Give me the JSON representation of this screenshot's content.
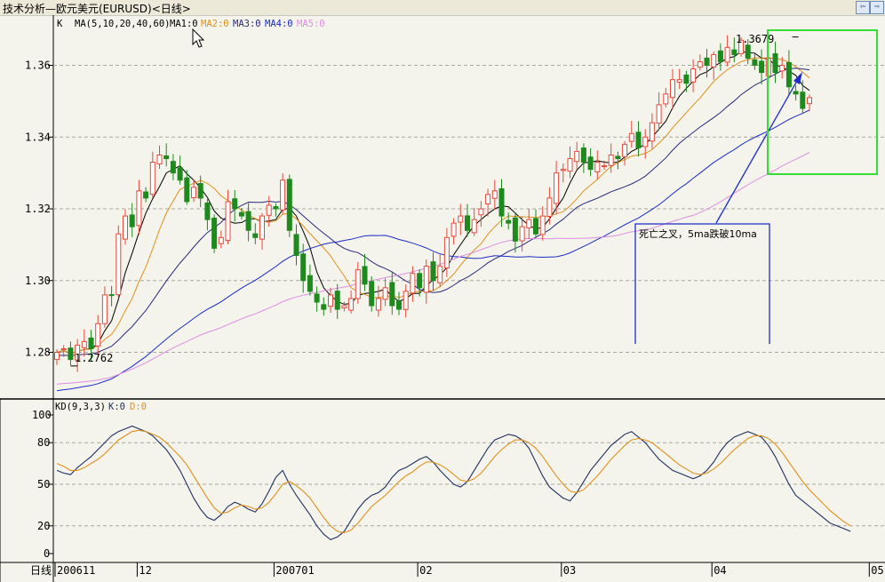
{
  "window": {
    "title": "技术分析—欧元美元(EURUSD)<日线>",
    "prev_icon": "arrow-left-icon",
    "next_icon": "arrow-right-icon"
  },
  "colors": {
    "up": "#e8483a",
    "down": "#1e8a1e",
    "ma1": "#000000",
    "ma2": "#e0901c",
    "ma3": "#2a2a7a",
    "ma4": "#1c2cc4",
    "ma5": "#dc8ee0",
    "k": "#1f2f5f",
    "d": "#e0901c",
    "highlight": "#33dd33",
    "arrow": "#1c2cc4"
  },
  "legend": {
    "k_label": "K",
    "ma_params": "MA(5,10,20,40,60)",
    "ma1": "MA1:0",
    "ma2": "MA2:0",
    "ma3": "MA3:0",
    "ma4": "MA4:0",
    "ma5": "MA5:0"
  },
  "annotations": {
    "high_label": "1.3679",
    "low_label": "1.2762",
    "note": "死亡之叉，5ma跌破10ma"
  },
  "kd_legend": {
    "params": "KD(9,3,3)",
    "k": "K:0",
    "d": "D:0"
  },
  "chart_data": [
    {
      "type": "candlestick",
      "title": "EURUSD 日线",
      "ylim": [
        1.267,
        1.374
      ],
      "y_ticks": [
        "1.28",
        "1.30",
        "1.32",
        "1.34",
        "1.36"
      ],
      "y_tick_values": [
        1.28,
        1.3,
        1.32,
        1.34,
        1.36
      ],
      "x_labels": [
        "200611",
        "12",
        "200701",
        "02",
        "03",
        "04",
        "05"
      ],
      "x_label_bars": [
        0,
        12,
        32,
        53,
        74,
        96,
        119
      ],
      "close_path": [
        1.28,
        1.281,
        1.278,
        1.282,
        1.283,
        1.281,
        1.288,
        1.296,
        1.296,
        1.313,
        1.318,
        1.315,
        1.325,
        1.323,
        1.333,
        1.335,
        1.334,
        1.33,
        1.328,
        1.322,
        1.326,
        1.323,
        1.317,
        1.309,
        1.312,
        1.322,
        1.32,
        1.318,
        1.314,
        1.312,
        1.318,
        1.321,
        1.32,
        1.328,
        1.314,
        1.307,
        1.3,
        1.297,
        1.294,
        1.292,
        1.296,
        1.292,
        1.293,
        1.295,
        1.303,
        1.299,
        1.293,
        1.295,
        1.298,
        1.293,
        1.292,
        1.297,
        1.302,
        1.298,
        1.304,
        1.3,
        1.304,
        1.312,
        1.316,
        1.318,
        1.314,
        1.317,
        1.32,
        1.324,
        1.325,
        1.318,
        1.316,
        1.311,
        1.315,
        1.317,
        1.313,
        1.318,
        1.323,
        1.33,
        1.331,
        1.334,
        1.336,
        1.333,
        1.331,
        1.333,
        1.332,
        1.335,
        1.334,
        1.338,
        1.341,
        1.337,
        1.34,
        1.344,
        1.349,
        1.352,
        1.356,
        1.356,
        1.355,
        1.359,
        1.361,
        1.36,
        1.363,
        1.361,
        1.365,
        1.363,
        1.367,
        1.362,
        1.36,
        1.358,
        1.362,
        1.358,
        1.36,
        1.354,
        1.352,
        1.348,
        1.351
      ],
      "high_label": {
        "bar": 108,
        "value": 1.3679
      },
      "low_label": {
        "bar": 2,
        "value": 1.2762
      },
      "series": [
        {
          "name": "MA1",
          "period": 5
        },
        {
          "name": "MA2",
          "period": 10
        },
        {
          "name": "MA3",
          "period": 20
        },
        {
          "name": "MA4",
          "period": 40
        },
        {
          "name": "MA5",
          "period": 60
        }
      ],
      "ma_start": {
        "MA3": 1.279,
        "MA4": 1.269,
        "MA5": 1.271
      }
    },
    {
      "type": "line",
      "title": "KD(9,3,3)",
      "ylim": [
        0,
        100
      ],
      "y_ticks": [
        "0",
        "20",
        "50",
        "80",
        "100"
      ],
      "y_tick_values": [
        0,
        20,
        50,
        80,
        100
      ],
      "series": [
        {
          "name": "K",
          "values": [
            60,
            58,
            57,
            62,
            66,
            70,
            75,
            80,
            85,
            88,
            90,
            92,
            90,
            88,
            85,
            80,
            75,
            68,
            60,
            50,
            40,
            32,
            26,
            24,
            28,
            34,
            37,
            35,
            32,
            30,
            36,
            45,
            55,
            60,
            50,
            42,
            35,
            28,
            20,
            14,
            10,
            12,
            16,
            24,
            32,
            38,
            42,
            44,
            48,
            55,
            60,
            62,
            65,
            68,
            70,
            66,
            60,
            55,
            50,
            48,
            52,
            60,
            68,
            76,
            82,
            84,
            86,
            85,
            82,
            76,
            66,
            56,
            48,
            44,
            40,
            38,
            44,
            52,
            60,
            66,
            72,
            78,
            82,
            86,
            88,
            84,
            80,
            74,
            68,
            64,
            60,
            58,
            56,
            54,
            56,
            60,
            66,
            74,
            80,
            84,
            86,
            88,
            86,
            84,
            78,
            70,
            60,
            50,
            42,
            38,
            34,
            30,
            26,
            22,
            20,
            18,
            16
          ]
        },
        {
          "name": "D",
          "values": [
            65,
            63,
            60,
            60,
            62,
            65,
            68,
            72,
            77,
            82,
            85,
            88,
            89,
            88,
            86,
            84,
            80,
            75,
            70,
            64,
            56,
            48,
            40,
            33,
            29,
            30,
            33,
            35,
            34,
            32,
            33,
            37,
            43,
            50,
            52,
            49,
            45,
            40,
            33,
            26,
            20,
            16,
            15,
            17,
            22,
            28,
            34,
            38,
            42,
            47,
            52,
            56,
            59,
            63,
            66,
            66,
            64,
            61,
            57,
            53,
            52,
            54,
            58,
            64,
            70,
            75,
            79,
            82,
            82,
            80,
            76,
            70,
            63,
            56,
            50,
            45,
            44,
            46,
            51,
            56,
            62,
            68,
            73,
            78,
            82,
            83,
            82,
            80,
            76,
            72,
            68,
            64,
            61,
            58,
            57,
            58,
            61,
            65,
            70,
            75,
            79,
            83,
            85,
            85,
            83,
            79,
            73,
            66,
            59,
            52,
            46,
            41,
            36,
            31,
            27,
            23,
            20
          ]
        }
      ]
    }
  ]
}
